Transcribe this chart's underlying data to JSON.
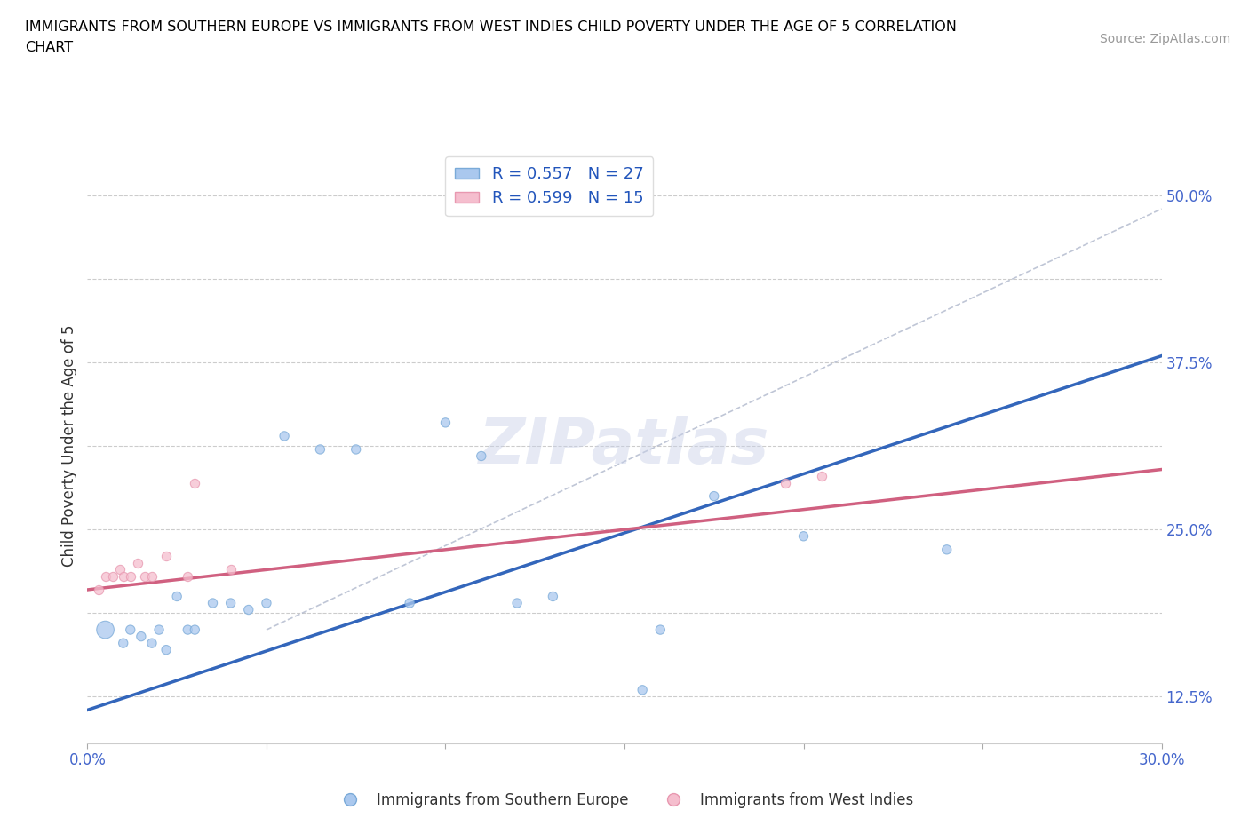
{
  "title_line1": "IMMIGRANTS FROM SOUTHERN EUROPE VS IMMIGRANTS FROM WEST INDIES CHILD POVERTY UNDER THE AGE OF 5 CORRELATION",
  "title_line2": "CHART",
  "source_text": "Source: ZipAtlas.com",
  "ylabel": "Child Poverty Under the Age of 5",
  "xlim": [
    0.0,
    0.3
  ],
  "ylim": [
    0.09,
    0.535
  ],
  "grid_color": "#cccccc",
  "blue_scatter_x": [
    0.005,
    0.01,
    0.012,
    0.015,
    0.018,
    0.02,
    0.022,
    0.025,
    0.028,
    0.03,
    0.035,
    0.04,
    0.045,
    0.05,
    0.055,
    0.065,
    0.075,
    0.09,
    0.1,
    0.11,
    0.12,
    0.13,
    0.155,
    0.16,
    0.175,
    0.2,
    0.24
  ],
  "blue_scatter_y": [
    0.175,
    0.165,
    0.175,
    0.17,
    0.165,
    0.175,
    0.16,
    0.2,
    0.175,
    0.175,
    0.195,
    0.195,
    0.19,
    0.195,
    0.32,
    0.31,
    0.31,
    0.195,
    0.33,
    0.305,
    0.195,
    0.2,
    0.13,
    0.175,
    0.275,
    0.245,
    0.235
  ],
  "blue_scatter_big_idx": 0,
  "pink_scatter_x": [
    0.003,
    0.005,
    0.007,
    0.009,
    0.01,
    0.012,
    0.014,
    0.016,
    0.018,
    0.022,
    0.028,
    0.03,
    0.04,
    0.195,
    0.205
  ],
  "pink_scatter_y": [
    0.205,
    0.215,
    0.215,
    0.22,
    0.215,
    0.215,
    0.225,
    0.215,
    0.215,
    0.23,
    0.215,
    0.285,
    0.22,
    0.285,
    0.29
  ],
  "blue_line_x": [
    0.0,
    0.3
  ],
  "blue_line_y": [
    0.115,
    0.38
  ],
  "pink_line_x": [
    0.0,
    0.3
  ],
  "pink_line_y": [
    0.205,
    0.295
  ],
  "dashed_line_x": [
    0.05,
    0.3
  ],
  "dashed_line_y": [
    0.175,
    0.49
  ],
  "blue_fill_color": "#aac8ee",
  "blue_edge_color": "#7aaad8",
  "blue_line_color": "#3366bb",
  "pink_fill_color": "#f5bece",
  "pink_edge_color": "#e898b0",
  "pink_line_color": "#d06080",
  "dashed_line_color": "#b0b8cc",
  "R_blue": "0.557",
  "N_blue": "27",
  "R_pink": "0.599",
  "N_pink": "15",
  "legend_label_blue": "Immigrants from Southern Europe",
  "legend_label_pink": "Immigrants from West Indies",
  "watermark_text": "ZIPatlas",
  "watermark_color": "#c8d0e8",
  "watermark_alpha": 0.45,
  "ytick_vals": [
    0.125,
    0.1875,
    0.25,
    0.3125,
    0.375,
    0.4375,
    0.5
  ],
  "ytick_labels": [
    "12.5%",
    "",
    "25.0%",
    "",
    "37.5%",
    "",
    "50.0%"
  ],
  "xtick_vals": [
    0.0,
    0.05,
    0.1,
    0.15,
    0.2,
    0.25,
    0.3
  ],
  "xtick_labels": [
    "0.0%",
    "",
    "",
    "",
    "",
    "",
    "30.0%"
  ]
}
